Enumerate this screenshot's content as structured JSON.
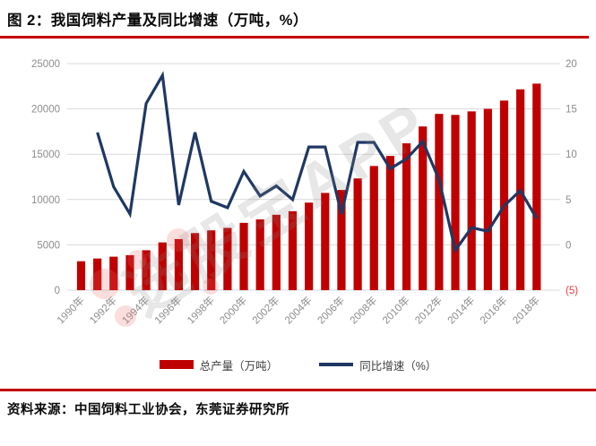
{
  "title": "图 2：我国饲料产量及同比增速（万吨，%）",
  "source": "资料来源：中国饲料工业协会，东莞证券研究所",
  "watermark": "选股宝APP",
  "legend": [
    {
      "label": "总产量（万吨）",
      "series": "production",
      "swatch": "bar"
    },
    {
      "label": "同比增速（%）",
      "series": "growth",
      "swatch": "line"
    }
  ],
  "colors": {
    "bar": "#c00000",
    "line": "#1f3864",
    "rule_red": "#c40000",
    "axis_text": "#8c8c8c",
    "negative_label": "#e84040",
    "gridline": "#d9d9d9",
    "legend_text": "#404040"
  },
  "chart_data": {
    "type": "bar",
    "subtype": "combo-bar-line-dual-axis",
    "categories": [
      "1990年",
      "1991年",
      "1992年",
      "1993年",
      "1994年",
      "1995年",
      "1996年",
      "1997年",
      "1998年",
      "1999年",
      "2000年",
      "2001年",
      "2002年",
      "2003年",
      "2004年",
      "2005年",
      "2006年",
      "2007年",
      "2008年",
      "2009年",
      "2010年",
      "2011年",
      "2012年",
      "2013年",
      "2014年",
      "2015年",
      "2016年",
      "2017年",
      "2018年"
    ],
    "x_axis": {
      "tick_labels": [
        "1990年",
        "1992年",
        "1994年",
        "1996年",
        "1998年",
        "2000年",
        "2002年",
        "2004年",
        "2006年",
        "2008年",
        "2010年",
        "2012年",
        "2014年",
        "2016年",
        "2018年"
      ],
      "tick_every": 2,
      "label_rotation_deg": -45
    },
    "series": [
      {
        "name": "总产量（万吨）",
        "type": "bar",
        "axis": "left",
        "color": "#c00000",
        "values": [
          3194,
          3494,
          3696,
          3862,
          4405,
          5268,
          5640,
          6299,
          6599,
          6872,
          7429,
          7806,
          8319,
          8711,
          9660,
          10731,
          11059,
          12331,
          13700,
          14813,
          16202,
          18063,
          19451,
          19340,
          19727,
          20009,
          20918,
          22161,
          22788
        ]
      },
      {
        "name": "同比增速（%）",
        "type": "line",
        "axis": "right",
        "color": "#1f3864",
        "values": [
          null,
          12.4,
          6.4,
          3.4,
          15.6,
          18.7,
          4.4,
          12.4,
          4.8,
          4.1,
          8.1,
          5.4,
          6.5,
          5.0,
          10.8,
          10.8,
          3.4,
          11.3,
          11.3,
          8.4,
          9.5,
          11.4,
          7.2,
          -0.6,
          1.9,
          1.5,
          4.3,
          6.0,
          2.9
        ]
      }
    ],
    "left_axis": {
      "min": 0,
      "max": 25000,
      "ticks": [
        0,
        5000,
        10000,
        15000,
        20000,
        25000
      ],
      "tick_labels": [
        "0",
        "5000",
        "10000",
        "15000",
        "20000",
        "25000"
      ]
    },
    "right_axis": {
      "min": -5,
      "max": 20,
      "ticks": [
        -5,
        0,
        5,
        10,
        15,
        20
      ],
      "tick_labels": [
        "(5)",
        "0",
        "5",
        "10",
        "15",
        "20"
      ],
      "negative_format": "parentheses-red"
    },
    "grid": true,
    "legend_position": "bottom"
  }
}
